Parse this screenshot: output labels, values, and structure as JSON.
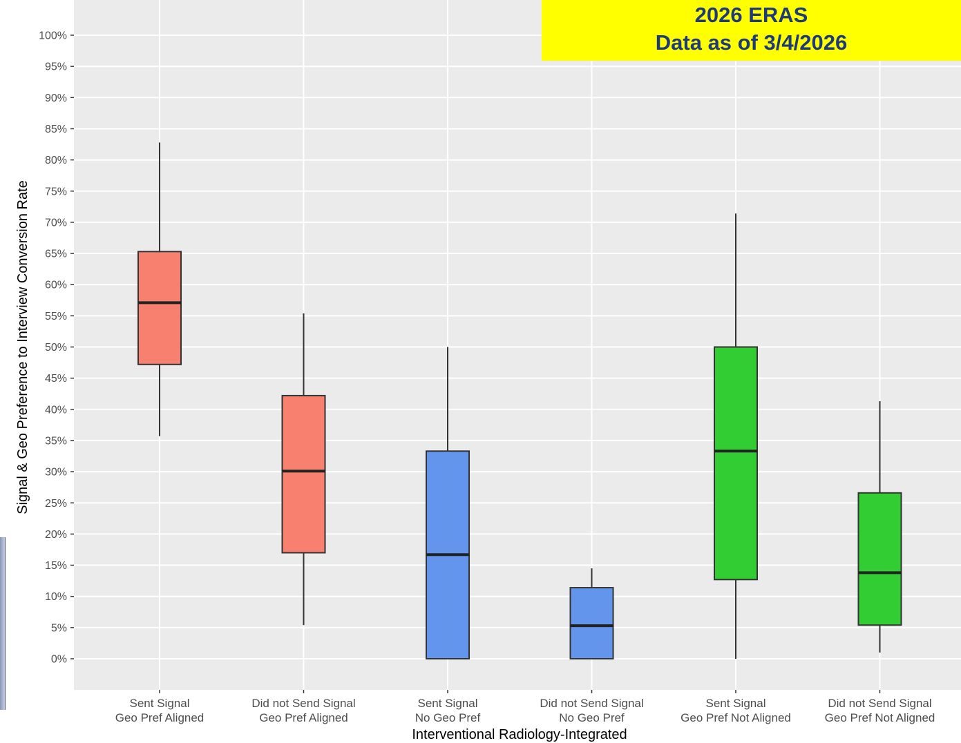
{
  "banner": {
    "line1": "2026 ERAS",
    "line2": "Data as of 3/4/2026"
  },
  "colors": {
    "panel_bg": "#ebebeb",
    "grid": "#ffffff",
    "signal_aligned": "#f8806f",
    "no_geo_pref": "#6495ed",
    "not_aligned": "#32cd32",
    "banner_bg": "#ffff00",
    "banner_text": "#1f3a7a"
  },
  "chart_data": {
    "type": "boxplot",
    "xlabel": "Interventional Radiology-Integrated",
    "ylabel": "Signal & Geo Preference to Interview Conversion Rate",
    "ylim": [
      -5,
      105
    ],
    "y_ticks": [
      0,
      5,
      10,
      15,
      20,
      25,
      30,
      35,
      40,
      45,
      50,
      55,
      60,
      65,
      70,
      75,
      80,
      85,
      90,
      95,
      100
    ],
    "y_tick_suffix": "%",
    "grid": true,
    "legend": "none",
    "categories": [
      {
        "line1": "Sent Signal",
        "line2": "Geo Pref Aligned",
        "min": 35.7,
        "q1": 47.2,
        "median": 57.1,
        "q3": 65.3,
        "max": 82.8,
        "color": "#f8806f"
      },
      {
        "line1": "Did not Send Signal",
        "line2": "Geo Pref Aligned",
        "min": 5.4,
        "q1": 17.0,
        "median": 30.1,
        "q3": 42.2,
        "max": 55.4,
        "color": "#f8806f"
      },
      {
        "line1": "Sent Signal",
        "line2": "No Geo Pref",
        "min": 0.0,
        "q1": 0.0,
        "median": 16.7,
        "q3": 33.3,
        "max": 50.0,
        "color": "#6495ed"
      },
      {
        "line1": "Did not Send Signal",
        "line2": "No Geo Pref",
        "min": 0.0,
        "q1": 0.0,
        "median": 5.3,
        "q3": 11.4,
        "max": 14.5,
        "color": "#6495ed"
      },
      {
        "line1": "Sent Signal",
        "line2": "Geo Pref Not Aligned",
        "min": 0.0,
        "q1": 12.7,
        "median": 33.3,
        "q3": 50.0,
        "max": 71.4,
        "color": "#32cd32"
      },
      {
        "line1": "Did not Send Signal",
        "line2": "Geo Pref Not Aligned",
        "min": 1.0,
        "q1": 5.4,
        "median": 13.8,
        "q3": 26.6,
        "max": 41.3,
        "color": "#32cd32"
      }
    ]
  }
}
